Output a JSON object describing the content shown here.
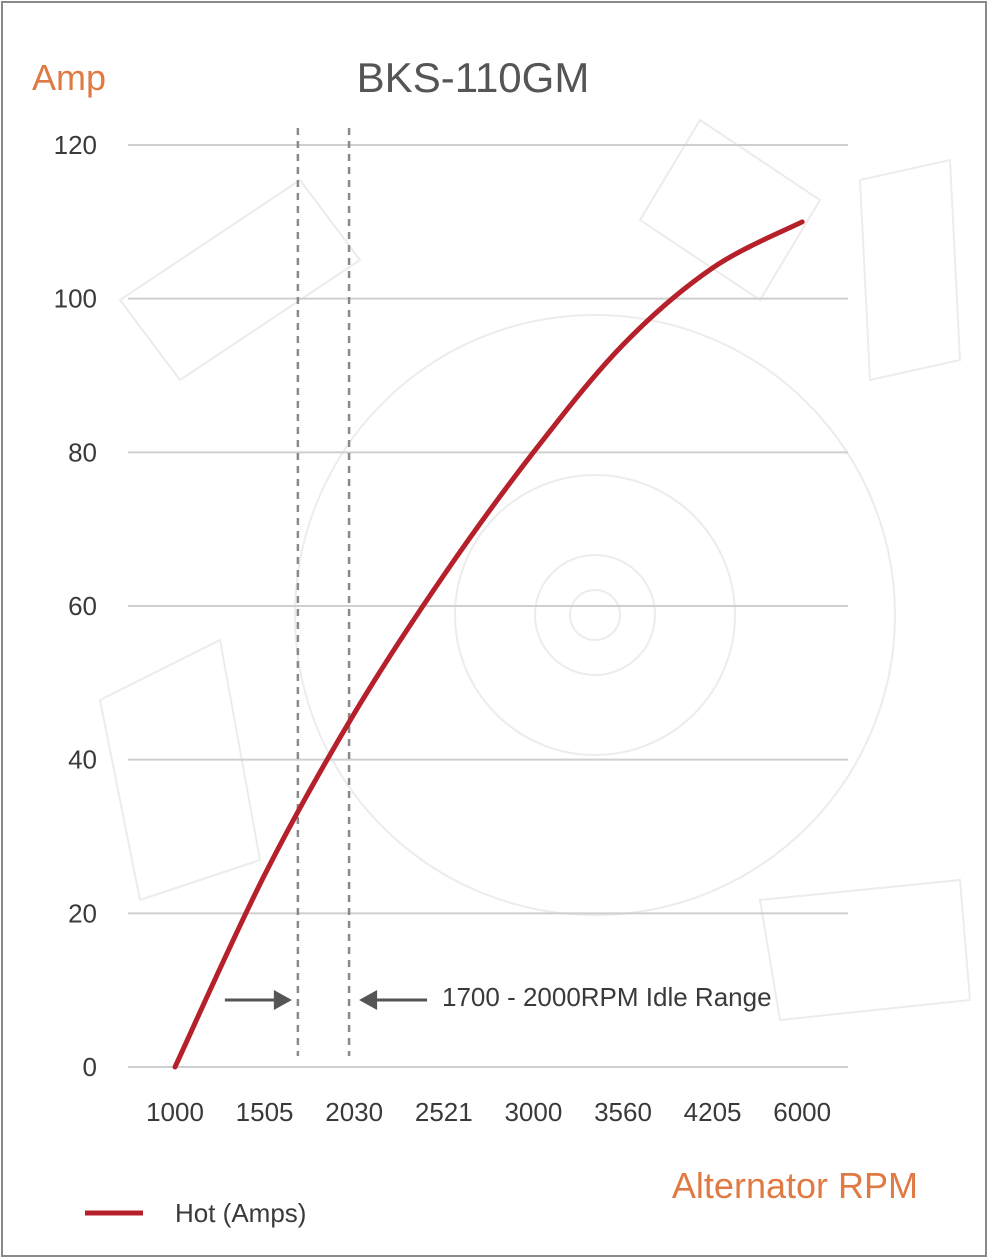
{
  "chart_data": {
    "type": "line",
    "title": "BKS-110GM",
    "ylabel": "Amp",
    "xlabel": "Alternator RPM",
    "categories": [
      "1000",
      "1505",
      "2030",
      "2521",
      "3000",
      "3560",
      "4205",
      "6000"
    ],
    "ylim": [
      0,
      120
    ],
    "yticks": [
      0,
      20,
      40,
      60,
      80,
      100,
      120
    ],
    "grid": true,
    "series": [
      {
        "name": "Hot (Amps)",
        "color": "#b5202a",
        "x": [
          1000,
          1505,
          2030,
          2521,
          3000,
          3560,
          4205,
          6000
        ],
        "values": [
          0,
          25,
          46,
          64,
          80,
          94,
          104,
          110
        ]
      }
    ],
    "idle_range": {
      "from": 1700,
      "to": 2000,
      "label": "1700 - 2000RPM Idle Range"
    },
    "legend_position": "bottom-left",
    "accent_color": "#e07a45"
  }
}
